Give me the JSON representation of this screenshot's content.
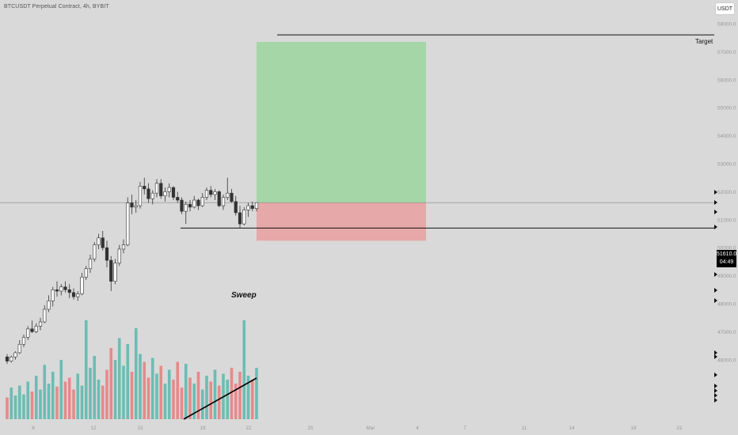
{
  "header": {
    "symbol_title": "BTCUSDT Perpetual Contract, 4h, BYBIT",
    "currency_button": "USDT"
  },
  "current_price": {
    "value": "51610.0",
    "countdown": "04:49"
  },
  "annotations": {
    "target_label": "Target",
    "sweep_label": "Sweep"
  },
  "chart_data": {
    "type": "candlestick",
    "y_axis": {
      "ticks": [
        "58000.0",
        "57000.0",
        "56000.0",
        "55000.0",
        "54000.0",
        "53000.0",
        "52000.0",
        "51000.0",
        "50000.0",
        "49000.0",
        "48000.0",
        "47000.0",
        "46000.0"
      ],
      "range": [
        45750,
        59000
      ]
    },
    "x_axis": {
      "ticks": [
        "8",
        "12",
        "15",
        "19",
        "22",
        "25",
        "Mar",
        "4",
        "7",
        "11",
        "14",
        "18",
        "21"
      ]
    },
    "candles": [
      [
        46100,
        46200,
        45850,
        45950
      ],
      [
        45950,
        46150,
        45900,
        46100
      ],
      [
        46100,
        46300,
        46000,
        46250
      ],
      [
        46250,
        46700,
        46200,
        46550
      ],
      [
        46550,
        46900,
        46450,
        46800
      ],
      [
        46800,
        47200,
        46700,
        47100
      ],
      [
        47100,
        47400,
        46950,
        47000
      ],
      [
        47000,
        47300,
        46950,
        47200
      ],
      [
        47200,
        47500,
        47050,
        47350
      ],
      [
        47350,
        47950,
        47300,
        47800
      ],
      [
        47800,
        48300,
        47700,
        48100
      ],
      [
        48100,
        48600,
        47900,
        48500
      ],
      [
        48500,
        48800,
        48250,
        48450
      ],
      [
        48450,
        48700,
        48300,
        48600
      ],
      [
        48600,
        48800,
        48400,
        48500
      ],
      [
        48500,
        48700,
        48200,
        48400
      ],
      [
        48400,
        48550,
        48150,
        48250
      ],
      [
        48250,
        48450,
        48100,
        48350
      ],
      [
        48350,
        49100,
        48300,
        48950
      ],
      [
        48950,
        49350,
        48850,
        49250
      ],
      [
        49250,
        49750,
        49100,
        49600
      ],
      [
        49600,
        50200,
        49500,
        50100
      ],
      [
        50100,
        50500,
        49950,
        50350
      ],
      [
        50350,
        50600,
        49900,
        50000
      ],
      [
        50000,
        50250,
        49300,
        49550
      ],
      [
        49550,
        49700,
        48450,
        48800
      ],
      [
        48800,
        49600,
        48700,
        49450
      ],
      [
        49450,
        50100,
        49350,
        49950
      ],
      [
        49950,
        50300,
        49800,
        50100
      ],
      [
        50100,
        51800,
        50050,
        51600
      ],
      [
        51600,
        51900,
        51200,
        51450
      ],
      [
        51450,
        51700,
        51250,
        51500
      ],
      [
        51500,
        52350,
        51400,
        52200
      ],
      [
        52200,
        52500,
        51900,
        52100
      ],
      [
        52100,
        52300,
        51600,
        51750
      ],
      [
        51750,
        52050,
        51550,
        51950
      ],
      [
        51950,
        52450,
        51800,
        52300
      ],
      [
        52300,
        52450,
        51750,
        51850
      ],
      [
        51850,
        52150,
        51650,
        52000
      ],
      [
        52000,
        52300,
        51800,
        52150
      ],
      [
        52150,
        52200,
        51700,
        51800
      ],
      [
        51800,
        52000,
        51600,
        51700
      ],
      [
        51700,
        51800,
        51200,
        51300
      ],
      [
        51300,
        51650,
        50850,
        51550
      ],
      [
        51550,
        51700,
        51300,
        51450
      ],
      [
        51450,
        51850,
        51400,
        51700
      ],
      [
        51700,
        51750,
        51350,
        51500
      ],
      [
        51500,
        51950,
        51450,
        51800
      ],
      [
        51800,
        52150,
        51700,
        52050
      ],
      [
        52050,
        52200,
        51800,
        51900
      ],
      [
        51900,
        52100,
        51700,
        52000
      ],
      [
        52000,
        52050,
        51450,
        51500
      ],
      [
        51500,
        51900,
        51350,
        51800
      ],
      [
        51800,
        52500,
        51700,
        51950
      ],
      [
        51950,
        52100,
        51600,
        51650
      ],
      [
        51650,
        51850,
        51150,
        51250
      ],
      [
        51250,
        51500,
        50700,
        50850
      ],
      [
        50850,
        51450,
        50800,
        51350
      ],
      [
        51350,
        51600,
        51100,
        51500
      ],
      [
        51500,
        51650,
        51300,
        51400
      ],
      [
        51400,
        51600,
        51300,
        51610
      ]
    ],
    "volume_relative": [
      0.22,
      0.32,
      0.24,
      0.34,
      0.25,
      0.38,
      0.28,
      0.44,
      0.3,
      0.55,
      0.36,
      0.48,
      0.33,
      0.6,
      0.38,
      0.42,
      0.3,
      0.46,
      0.34,
      1.0,
      0.52,
      0.64,
      0.4,
      0.34,
      0.5,
      0.72,
      0.6,
      0.82,
      0.54,
      0.76,
      0.48,
      0.92,
      0.66,
      0.58,
      0.42,
      0.62,
      0.46,
      0.54,
      0.36,
      0.5,
      0.4,
      0.58,
      0.32,
      0.56,
      0.42,
      0.36,
      0.48,
      0.3,
      0.44,
      0.38,
      0.5,
      0.34,
      0.46,
      0.4,
      0.52,
      0.36,
      0.48,
      1.0,
      0.44,
      0.4,
      0.52
    ],
    "position": {
      "entry": 51600,
      "stop": 50250,
      "target": 57350,
      "profit_color": "#a5d6a7",
      "loss_color": "#e6a8a8"
    },
    "levels": {
      "target_line": 57600,
      "sweep_line": 50700,
      "current_price": 51610
    },
    "colors": {
      "up": "#ffffff",
      "down": "#333333",
      "vol_up": "#6bbdb3",
      "vol_down": "#e68a8a",
      "trend": "#000000"
    }
  }
}
